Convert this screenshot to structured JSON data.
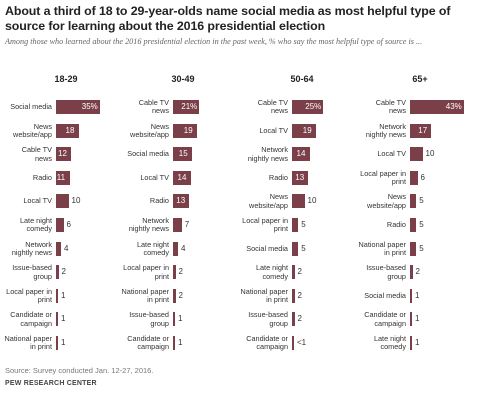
{
  "title": "About a third of 18 to 29-year-olds name social media as most helpful type of source for learning about the 2016 presidential election",
  "subtitle": "Among those who learned about the 2016 presidential election in the past week, % who say the most helpful type of source is ...",
  "footnote": "Source: Survey conducted Jan. 12-27, 2016.",
  "source": "PEW RESEARCH CENTER",
  "colors": {
    "bar": "#7b3f4a"
  },
  "chart_data": [
    {
      "type": "bar",
      "title": "18-29",
      "categories": [
        "Social media",
        "News website/app",
        "Cable TV news",
        "Radio",
        "Local TV",
        "Late night comedy",
        "Network nightly news",
        "Issue-based group",
        "Local paper in print",
        "Candidate or campaign",
        "National paper in print"
      ],
      "values": [
        35,
        18,
        12,
        11,
        10,
        6,
        4,
        2,
        1,
        1,
        1
      ],
      "value_labels": [
        "35%",
        "18",
        "12",
        "11",
        "10",
        "6",
        "4",
        "2",
        "1",
        "1",
        "1"
      ]
    },
    {
      "type": "bar",
      "title": "30-49",
      "categories": [
        "Cable TV news",
        "News website/app",
        "Social media",
        "Local TV",
        "Radio",
        "Network nightly news",
        "Late night comedy",
        "Local paper in print",
        "National paper in print",
        "Issue-based group",
        "Candidate or campaign"
      ],
      "values": [
        21,
        19,
        15,
        14,
        13,
        7,
        4,
        2,
        2,
        1,
        1
      ],
      "value_labels": [
        "21%",
        "19",
        "15",
        "14",
        "13",
        "7",
        "4",
        "2",
        "2",
        "1",
        "1"
      ]
    },
    {
      "type": "bar",
      "title": "50-64",
      "categories": [
        "Cable TV news",
        "Local TV",
        "Network nightly news",
        "Radio",
        "News website/app",
        "Local paper in print",
        "Social media",
        "Late night comedy",
        "National paper in print",
        "Issue-based group",
        "Candidate or campaign"
      ],
      "values": [
        25,
        19,
        14,
        13,
        10,
        5,
        5,
        2,
        2,
        2,
        0.5
      ],
      "value_labels": [
        "25%",
        "19",
        "14",
        "13",
        "10",
        "5",
        "5",
        "2",
        "2",
        "2",
        "<1"
      ]
    },
    {
      "type": "bar",
      "title": "65+",
      "categories": [
        "Cable TV news",
        "Network nightly news",
        "Local TV",
        "Local paper in print",
        "News website/app",
        "Radio",
        "National paper in print",
        "Issue-based group",
        "Social media",
        "Candidate or campaign",
        "Late night comedy"
      ],
      "values": [
        43,
        17,
        10,
        6,
        5,
        5,
        5,
        2,
        1,
        1,
        1
      ],
      "value_labels": [
        "43%",
        "17",
        "10",
        "6",
        "5",
        "5",
        "5",
        "2",
        "1",
        "1",
        "1"
      ]
    }
  ]
}
